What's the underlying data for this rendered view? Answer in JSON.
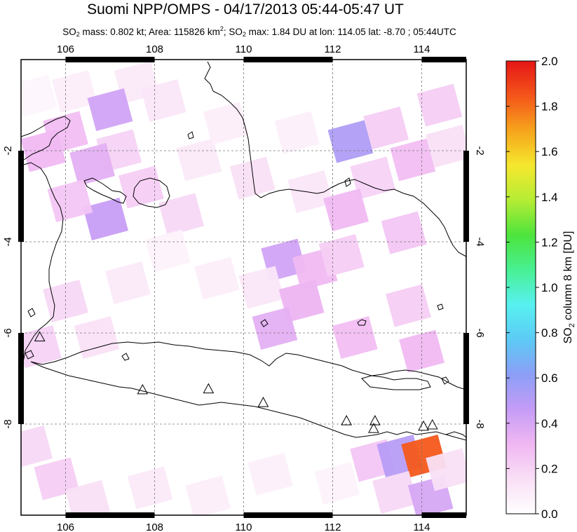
{
  "title": "Suomi NPP/OMPS - 04/17/2013 05:44-05:47 UT",
  "subtitle": {
    "p1": "SO",
    "p1_sub": "2",
    "p2": " mass: 0.802 kt; Area: 115826 km",
    "p2_sup": "2",
    "p3": "; SO",
    "p3_sub": "2",
    "p4": " max: 1.84 DU at lon: 114.05 lat: -8.70 ; 05:44UTC"
  },
  "map": {
    "lon_range": [
      105.0,
      115.0
    ],
    "lat_range": [
      -10.0,
      0.0
    ],
    "lon_ticks": [
      "106",
      "108",
      "110",
      "112",
      "114"
    ],
    "lat_ticks": [
      "-2",
      "-4",
      "-6",
      "-8"
    ],
    "grid": true,
    "volcanoes": [
      [
        105.42,
        -6.1
      ],
      [
        107.73,
        -7.26
      ],
      [
        109.21,
        -7.24
      ],
      [
        110.44,
        -7.54
      ],
      [
        112.31,
        -7.94
      ],
      [
        112.95,
        -7.94
      ],
      [
        112.92,
        -8.11
      ],
      [
        114.04,
        -8.06
      ],
      [
        114.24,
        -8.03
      ]
    ],
    "so2_pixels": [
      {
        "lon": 105.3,
        "lat": -0.8,
        "du": 0.05
      },
      {
        "lon": 106.2,
        "lat": -0.7,
        "du": 0.08
      },
      {
        "lon": 107.6,
        "lat": -0.5,
        "du": 0.1
      },
      {
        "lon": 108.2,
        "lat": -0.9,
        "du": 0.12
      },
      {
        "lon": 107.0,
        "lat": -1.1,
        "du": 0.42
      },
      {
        "lon": 106.0,
        "lat": -1.6,
        "du": 0.28
      },
      {
        "lon": 105.5,
        "lat": -2.0,
        "du": 0.3
      },
      {
        "lon": 107.2,
        "lat": -2.0,
        "du": 0.2
      },
      {
        "lon": 106.6,
        "lat": -2.3,
        "du": 0.35
      },
      {
        "lon": 107.7,
        "lat": -2.8,
        "du": 0.22
      },
      {
        "lon": 106.9,
        "lat": -3.5,
        "du": 0.45
      },
      {
        "lon": 106.1,
        "lat": -3.1,
        "du": 0.25
      },
      {
        "lon": 108.6,
        "lat": -3.4,
        "du": 0.18
      },
      {
        "lon": 109.0,
        "lat": -2.2,
        "du": 0.1
      },
      {
        "lon": 109.6,
        "lat": -1.4,
        "du": 0.08
      },
      {
        "lon": 110.2,
        "lat": -2.6,
        "du": 0.15
      },
      {
        "lon": 111.2,
        "lat": -1.6,
        "du": 0.07
      },
      {
        "lon": 111.5,
        "lat": -2.9,
        "du": 0.12
      },
      {
        "lon": 112.4,
        "lat": -1.8,
        "du": 0.52
      },
      {
        "lon": 113.2,
        "lat": -1.5,
        "du": 0.22
      },
      {
        "lon": 113.8,
        "lat": -2.2,
        "du": 0.28
      },
      {
        "lon": 114.4,
        "lat": -1.0,
        "du": 0.22
      },
      {
        "lon": 114.6,
        "lat": -1.9,
        "du": 0.15
      },
      {
        "lon": 112.9,
        "lat": -2.6,
        "du": 0.2
      },
      {
        "lon": 112.3,
        "lat": -3.3,
        "du": 0.3
      },
      {
        "lon": 113.6,
        "lat": -3.8,
        "du": 0.25
      },
      {
        "lon": 110.9,
        "lat": -4.4,
        "du": 0.42
      },
      {
        "lon": 111.6,
        "lat": -4.6,
        "du": 0.3
      },
      {
        "lon": 112.2,
        "lat": -4.3,
        "du": 0.22
      },
      {
        "lon": 110.4,
        "lat": -5.0,
        "du": 0.12
      },
      {
        "lon": 111.3,
        "lat": -5.3,
        "du": 0.32
      },
      {
        "lon": 109.4,
        "lat": -4.8,
        "du": 0.08
      },
      {
        "lon": 108.3,
        "lat": -4.2,
        "du": 0.06
      },
      {
        "lon": 107.4,
        "lat": -4.9,
        "du": 0.1
      },
      {
        "lon": 106.0,
        "lat": -5.3,
        "du": 0.18
      },
      {
        "lon": 105.4,
        "lat": -6.3,
        "du": 0.2
      },
      {
        "lon": 106.7,
        "lat": -6.1,
        "du": 0.14
      },
      {
        "lon": 110.7,
        "lat": -5.9,
        "du": 0.35
      },
      {
        "lon": 112.5,
        "lat": -6.1,
        "du": 0.28
      },
      {
        "lon": 113.7,
        "lat": -5.4,
        "du": 0.22
      },
      {
        "lon": 114.0,
        "lat": -6.4,
        "du": 0.3
      },
      {
        "lon": 105.2,
        "lat": -8.5,
        "du": 0.18
      },
      {
        "lon": 105.8,
        "lat": -9.2,
        "du": 0.22
      },
      {
        "lon": 106.5,
        "lat": -9.7,
        "du": 0.15
      },
      {
        "lon": 107.9,
        "lat": -9.4,
        "du": 0.1
      },
      {
        "lon": 109.2,
        "lat": -9.6,
        "du": 0.08
      },
      {
        "lon": 110.6,
        "lat": -9.1,
        "du": 0.07
      },
      {
        "lon": 112.1,
        "lat": -9.3,
        "du": 0.06
      },
      {
        "lon": 112.9,
        "lat": -8.8,
        "du": 0.25
      },
      {
        "lon": 113.5,
        "lat": -8.7,
        "du": 0.5
      },
      {
        "lon": 114.05,
        "lat": -8.7,
        "du": 1.84
      },
      {
        "lon": 113.4,
        "lat": -9.5,
        "du": 0.18
      },
      {
        "lon": 114.2,
        "lat": -9.6,
        "du": 0.4
      },
      {
        "lon": 114.6,
        "lat": -9.0,
        "du": 0.15
      }
    ]
  },
  "colorbar": {
    "label_main": "SO",
    "label_sub": "2",
    "label_rest": " column 8 km [DU]",
    "min": 0.0,
    "max": 2.0,
    "ticks": [
      "0.0",
      "0.2",
      "0.4",
      "0.6",
      "0.8",
      "1.0",
      "1.2",
      "1.4",
      "1.6",
      "1.8",
      "2.0"
    ],
    "colors": [
      "#ffffff",
      "#f9dff6",
      "#f0b7f2",
      "#c59cf6",
      "#8c9ef6",
      "#5ccaf5",
      "#58f1f1",
      "#48f093",
      "#4de43d",
      "#b5ec35",
      "#f5e82e",
      "#f6a41c",
      "#f4551a",
      "#e51616"
    ]
  }
}
